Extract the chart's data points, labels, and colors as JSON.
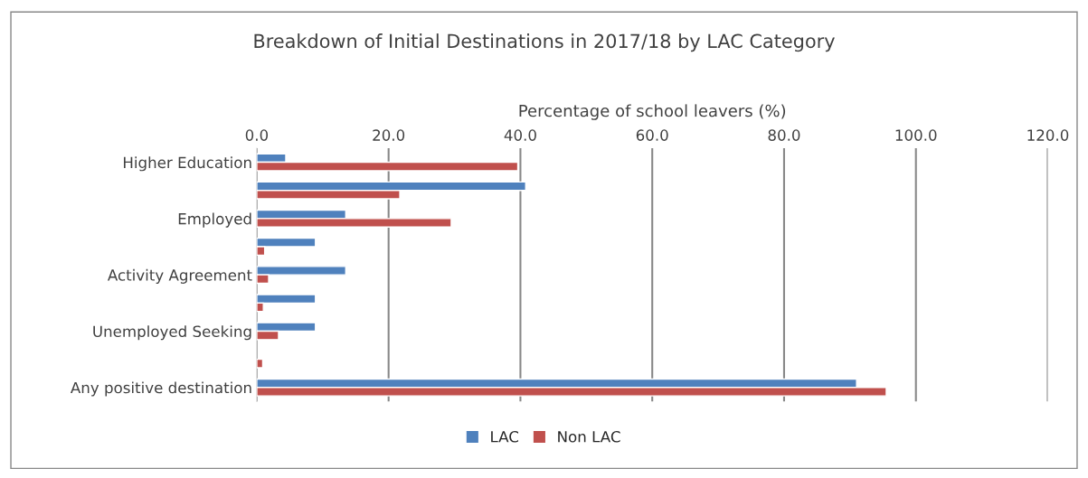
{
  "chart_data": {
    "type": "bar",
    "orientation": "horizontal",
    "title": "Breakdown of Initial Destinations in 2017/18 by LAC Category",
    "xlabel": "Percentage of school leavers (%)",
    "categories": [
      "Higher Education",
      null,
      "Employed",
      null,
      "Activity Agreement",
      null,
      "Unemployed Seeking",
      null,
      "Any positive destination"
    ],
    "series": [
      {
        "name": "LAC",
        "color": "#4f81bd",
        "values": [
          4.4,
          40.8,
          13.5,
          8.9,
          13.5,
          8.9,
          8.9,
          null,
          91.0
        ]
      },
      {
        "name": "Non LAC",
        "color": "#c0504d",
        "values": [
          39.6,
          21.7,
          29.5,
          1.2,
          1.8,
          1.0,
          3.3,
          0.9,
          95.5
        ]
      }
    ],
    "xlim": [
      0,
      120
    ],
    "xticks": [
      {
        "value": 0,
        "label": "0.0"
      },
      {
        "value": 20,
        "label": "20.0"
      },
      {
        "value": 40,
        "label": "40.0"
      },
      {
        "value": 60,
        "label": "60.0"
      },
      {
        "value": 80,
        "label": "80.0"
      },
      {
        "value": 100,
        "label": "100.0"
      },
      {
        "value": 120,
        "label": "120.0"
      }
    ],
    "grid": "x",
    "legend": "bottom"
  }
}
